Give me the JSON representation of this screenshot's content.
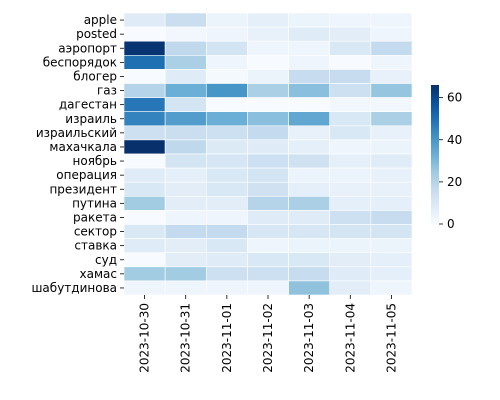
{
  "chart_data": {
    "type": "heatmap",
    "title": "",
    "xlabel": "",
    "ylabel": "",
    "x_categories": [
      "2023-10-30",
      "2023-10-31",
      "2023-11-01",
      "2023-11-02",
      "2023-11-03",
      "2023-11-04",
      "2023-11-05"
    ],
    "y_categories": [
      "apple",
      "posted",
      "аэропорт",
      "беспорядок",
      "блогер",
      "газ",
      "дагестан",
      "израиль",
      "израильский",
      "махачкала",
      "ноябрь",
      "операция",
      "президент",
      "путина",
      "ракета",
      "сектор",
      "ставка",
      "суд",
      "хамас",
      "шабутдинова"
    ],
    "values": [
      [
        8,
        15,
        4,
        6,
        4,
        3,
        3
      ],
      [
        0,
        2,
        3,
        5,
        8,
        7,
        3
      ],
      [
        65,
        18,
        12,
        3,
        3,
        10,
        17
      ],
      [
        50,
        22,
        3,
        0,
        3,
        0,
        3
      ],
      [
        0,
        8,
        1,
        4,
        16,
        16,
        5
      ],
      [
        20,
        33,
        40,
        22,
        28,
        14,
        26
      ],
      [
        48,
        12,
        0,
        0,
        0,
        2,
        2
      ],
      [
        45,
        38,
        33,
        28,
        35,
        10,
        22
      ],
      [
        14,
        15,
        14,
        17,
        5,
        10,
        5
      ],
      [
        66,
        18,
        9,
        8,
        6,
        3,
        4
      ],
      [
        0,
        12,
        11,
        14,
        13,
        6,
        8
      ],
      [
        8,
        6,
        10,
        12,
        4,
        4,
        5
      ],
      [
        10,
        7,
        10,
        13,
        6,
        5,
        5
      ],
      [
        24,
        7,
        7,
        20,
        22,
        6,
        6
      ],
      [
        0,
        3,
        3,
        8,
        8,
        14,
        16
      ],
      [
        10,
        17,
        17,
        11,
        11,
        12,
        12
      ],
      [
        8,
        7,
        10,
        3,
        4,
        4,
        4
      ],
      [
        0,
        7,
        8,
        10,
        10,
        7,
        6
      ],
      [
        24,
        24,
        14,
        14,
        16,
        8,
        6
      ],
      [
        3,
        3,
        3,
        3,
        27,
        7,
        3
      ]
    ],
    "colorbar": {
      "min": 0,
      "max": 66,
      "ticks": [
        0,
        20,
        40,
        60
      ]
    },
    "colormap": [
      "#f7fbff",
      "#deebf7",
      "#c6dbef",
      "#9ecae1",
      "#6baed6",
      "#4292c6",
      "#2171b5",
      "#08519c",
      "#08306b"
    ]
  }
}
